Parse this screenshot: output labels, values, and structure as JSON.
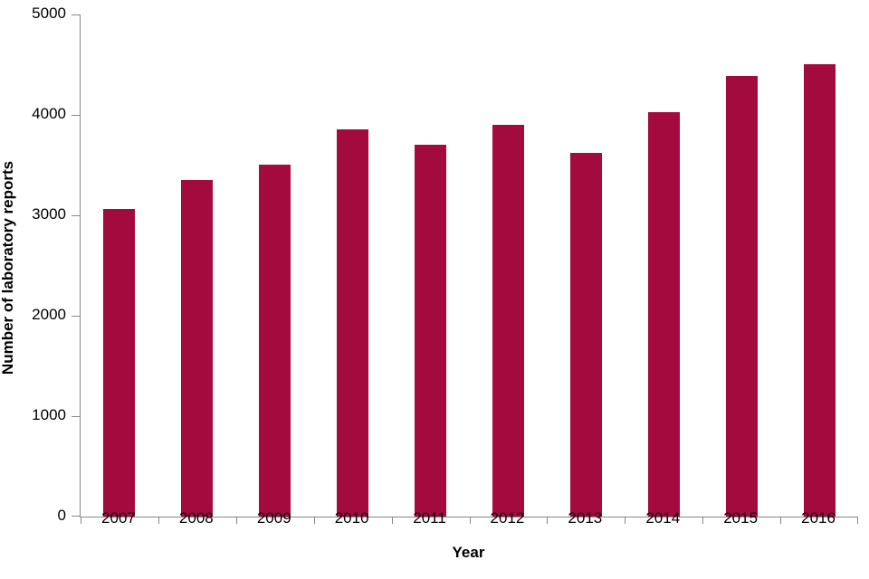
{
  "chart_data": {
    "type": "bar",
    "xlabel": "Year",
    "ylabel": "Number of laboratory reports",
    "categories": [
      "2007",
      "2008",
      "2009",
      "2010",
      "2011",
      "2012",
      "2013",
      "2014",
      "2015",
      "2016"
    ],
    "values": [
      3060,
      3350,
      3500,
      3860,
      3700,
      3900,
      3620,
      4030,
      4390,
      4500
    ],
    "ylim": [
      0,
      5000
    ],
    "yticks": [
      0,
      1000,
      2000,
      3000,
      4000,
      5000
    ],
    "bar_color": "#A30A3E",
    "axis_color": "#868686",
    "grid": false,
    "legend": "none"
  }
}
